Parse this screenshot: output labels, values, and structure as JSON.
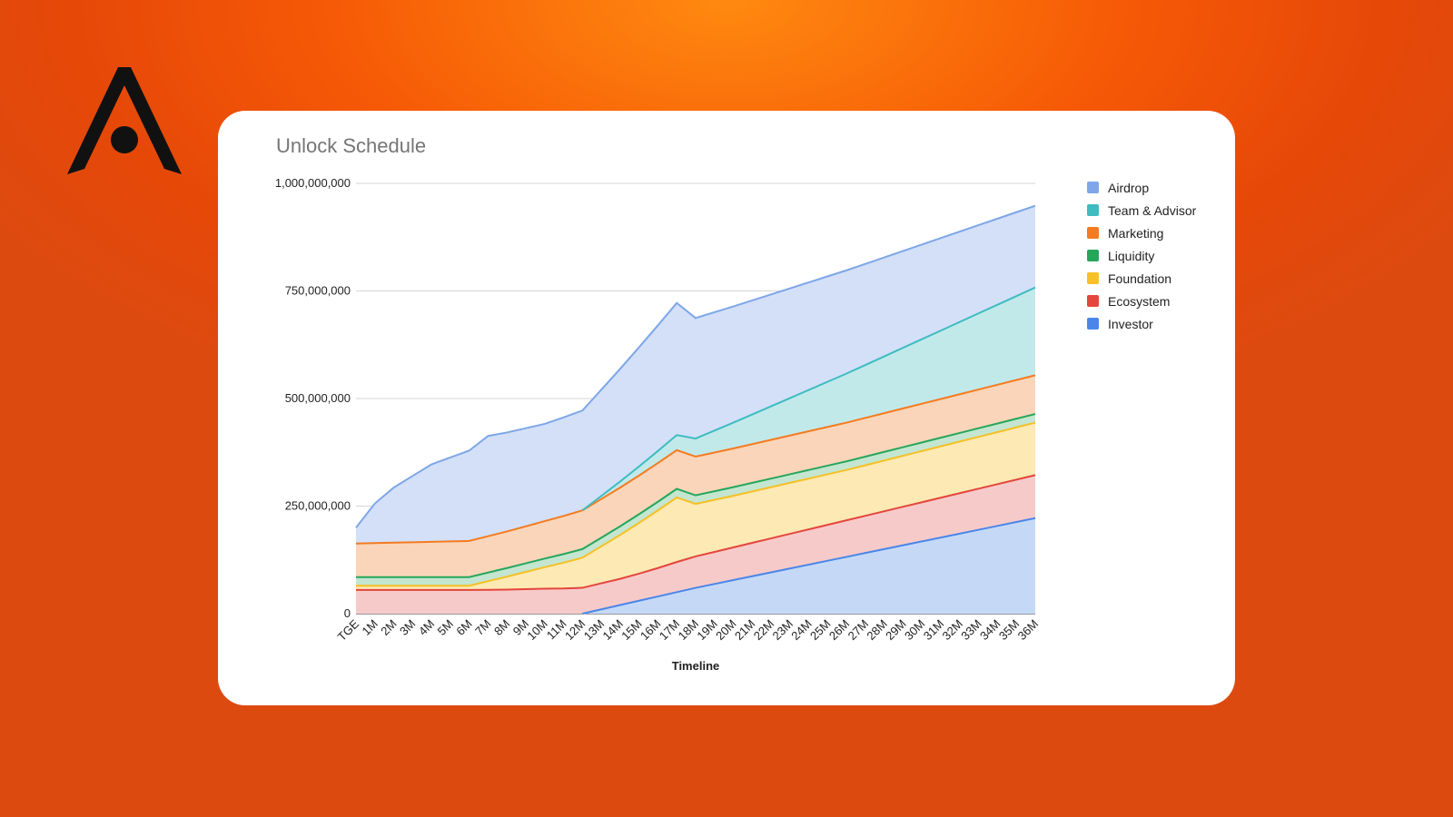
{
  "brand": {
    "logo_icon": "a-letter-logo-icon",
    "logo_color": "#111111"
  },
  "colors": {
    "background": "#f65a06",
    "card": "#ffffff"
  },
  "chart_data": {
    "type": "area",
    "stacked": true,
    "title": "Unlock Schedule",
    "xlabel": "Timeline",
    "ylabel": "",
    "ylim": [
      0,
      1000000000
    ],
    "yticks": [
      {
        "value": 0,
        "label": "0"
      },
      {
        "value": 250000000,
        "label": "250,000,000"
      },
      {
        "value": 500000000,
        "label": "500,000,000"
      },
      {
        "value": 750000000,
        "label": "750,000,000"
      },
      {
        "value": 1000000000,
        "label": "1,000,000,000"
      }
    ],
    "grid": true,
    "legend_position": "right",
    "categories": [
      "TGE",
      "1M",
      "2M",
      "3M",
      "4M",
      "5M",
      "6M",
      "7M",
      "8M",
      "9M",
      "10M",
      "11M",
      "12M",
      "13M",
      "14M",
      "15M",
      "16M",
      "17M",
      "18M",
      "19M",
      "20M",
      "21M",
      "22M",
      "23M",
      "24M",
      "25M",
      "26M",
      "27M",
      "28M",
      "29M",
      "30M",
      "31M",
      "32M",
      "33M",
      "34M",
      "35M",
      "36M"
    ],
    "series": [
      {
        "name": "Investor",
        "color": "#4a86e8",
        "fill": "#c5d9f7",
        "values": [
          0,
          0,
          0,
          0,
          0,
          0,
          0,
          0,
          0,
          0,
          0,
          0,
          0,
          10000000,
          20000000,
          30000000,
          40000000,
          50000000,
          60000000,
          69000000,
          78000000,
          87000000,
          96000000,
          105000000,
          114000000,
          123000000,
          132000000,
          141000000,
          150000000,
          159000000,
          168000000,
          177000000,
          186000000,
          195000000,
          204000000,
          213000000,
          222000000
        ]
      },
      {
        "name": "Ecosystem",
        "color": "#e3463b",
        "fill": "#f7caca",
        "values": [
          55000000,
          55000000,
          55000000,
          55000000,
          55000000,
          55000000,
          55000000,
          55500000,
          56000000,
          57000000,
          58000000,
          58500000,
          60000000,
          60500000,
          61000000,
          63000000,
          66000000,
          70000000,
          73000000,
          74500000,
          76000000,
          77500000,
          79000000,
          80500000,
          82000000,
          83500000,
          85000000,
          86500000,
          88000000,
          89500000,
          91000000,
          92500000,
          94000000,
          95500000,
          97000000,
          98500000,
          100000000
        ]
      },
      {
        "name": "Foundation",
        "color": "#f6c026",
        "fill": "#fce9b4",
        "values": [
          10000000,
          10000000,
          10000000,
          10000000,
          10000000,
          10000000,
          10000000,
          20000000,
          30000000,
          40000000,
          50000000,
          60000000,
          70000000,
          86000000,
          102000000,
          118000000,
          134000000,
          150000000,
          122000000,
          121000000,
          120000000,
          119500000,
          119000000,
          118500000,
          118000000,
          117500000,
          117000000,
          117500000,
          118000000,
          118500000,
          119000000,
          119500000,
          120000000,
          120500000,
          121000000,
          121500000,
          122000000
        ]
      },
      {
        "name": "Liquidity",
        "color": "#26a65b",
        "fill": "#c4e6d0",
        "values": [
          20000000,
          20000000,
          20000000,
          20000000,
          20000000,
          20000000,
          20000000,
          20000000,
          20000000,
          20000000,
          20000000,
          20000000,
          20000000,
          20000000,
          20000000,
          20000000,
          20000000,
          20000000,
          20000000,
          20000000,
          20000000,
          20000000,
          20000000,
          20000000,
          20000000,
          20000000,
          20000000,
          20000000,
          20000000,
          20000000,
          20000000,
          20000000,
          20000000,
          20000000,
          20000000,
          20000000,
          20000000
        ]
      },
      {
        "name": "Marketing",
        "color": "#f47b20",
        "fill": "#fbd5b9",
        "values": [
          78000000,
          79000000,
          80000000,
          81000000,
          82000000,
          83000000,
          84000000,
          84500000,
          85000000,
          86000000,
          87000000,
          88500000,
          90000000,
          90000000,
          90000000,
          90000000,
          90000000,
          90000000,
          90000000,
          90000000,
          90000000,
          90000000,
          90000000,
          90000000,
          90000000,
          90000000,
          90000000,
          90000000,
          90000000,
          90000000,
          90000000,
          90000000,
          90000000,
          90000000,
          90000000,
          90000000,
          90000000
        ]
      },
      {
        "name": "Team & Advisor",
        "color": "#3ebcc0",
        "fill": "#c2e9ea",
        "values": [
          0,
          0,
          0,
          0,
          0,
          0,
          0,
          0,
          0,
          0,
          0,
          0,
          0,
          7000000,
          14000000,
          21000000,
          28000000,
          35000000,
          42000000,
          51000000,
          60000000,
          69000000,
          78000000,
          87000000,
          96000000,
          105000000,
          114000000,
          123000000,
          132000000,
          141000000,
          150000000,
          159000000,
          168000000,
          177000000,
          186000000,
          195000000,
          204000000
        ]
      },
      {
        "name": "Airdrop",
        "color": "#7ea6e8",
        "fill": "#d3e0f8",
        "values": [
          37000000,
          92000000,
          128000000,
          154000000,
          180000000,
          195000000,
          210000000,
          233000000,
          230000000,
          228000000,
          226000000,
          229000000,
          232000000,
          247000000,
          262000000,
          277000000,
          292000000,
          307000000,
          280000000,
          275000000,
          270000000,
          265000000,
          260000000,
          255000000,
          250000000,
          245000000,
          240000000,
          235000000,
          230000000,
          225000000,
          220000000,
          215000000,
          210000000,
          205000000,
          200000000,
          195000000,
          190000000
        ]
      }
    ]
  }
}
